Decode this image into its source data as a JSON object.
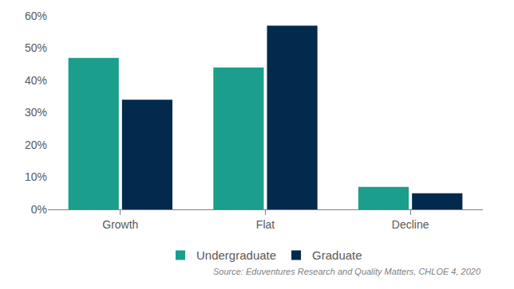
{
  "chart_data": {
    "type": "bar",
    "categories": [
      "Growth",
      "Flat",
      "Decline"
    ],
    "series": [
      {
        "name": "Undergraduate",
        "color": "#1b9e8c",
        "values": [
          47,
          44,
          7
        ]
      },
      {
        "name": "Graduate",
        "color": "#012a4c",
        "values": [
          34,
          57,
          5
        ]
      }
    ],
    "ylim": [
      0,
      60
    ],
    "yticks": [
      {
        "value": 0,
        "label": "0%"
      },
      {
        "value": 10,
        "label": "10%"
      },
      {
        "value": 20,
        "label": "20%"
      },
      {
        "value": 30,
        "label": "30%"
      },
      {
        "value": 40,
        "label": "40%"
      },
      {
        "value": 50,
        "label": "50%"
      },
      {
        "value": 60,
        "label": "60%"
      }
    ],
    "grid": false,
    "legend": "bottom",
    "annotations": [
      "Source: Eduventures Research and Quality Matters, CHLOE 4, 2020"
    ]
  }
}
